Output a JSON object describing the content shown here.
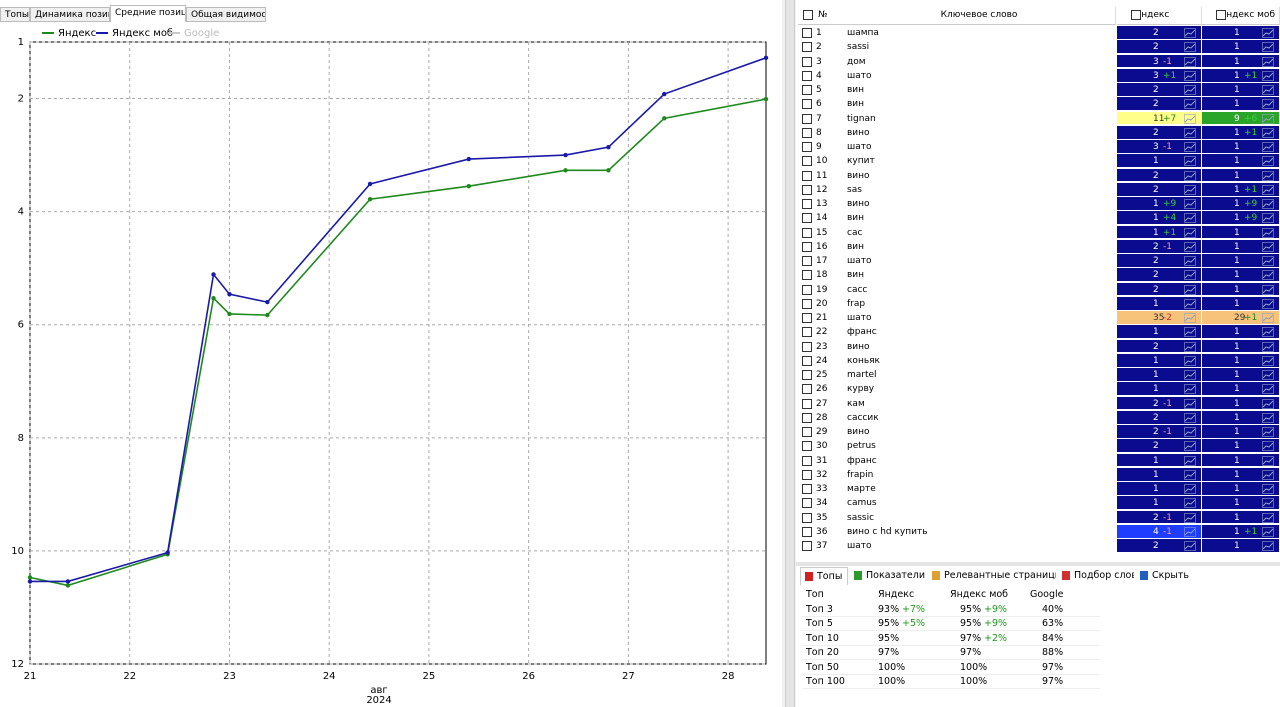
{
  "left_tabs": [
    "Топы",
    "Динамика позиций",
    "Средние позиции",
    "Общая видимость"
  ],
  "left_active_tab": 2,
  "chart_data": {
    "type": "line",
    "x": [
      21,
      21.38,
      22.38,
      22.84,
      23.0,
      23.38,
      24.41,
      25.4,
      26.37,
      26.8,
      27.36,
      28.38
    ],
    "series": [
      {
        "name": "Яндекс",
        "color": "#1e8a1e",
        "values": [
          10.47,
          10.61,
          10.06,
          5.53,
          5.81,
          5.83,
          3.78,
          3.55,
          3.27,
          3.27,
          2.35,
          2.01
        ]
      },
      {
        "name": "Яндекс моб",
        "color": "#1a1aa8",
        "values": [
          10.54,
          10.54,
          10.03,
          5.11,
          5.46,
          5.6,
          3.51,
          3.07,
          3.0,
          2.86,
          1.92,
          1.28
        ]
      },
      {
        "name": "Google",
        "color": "#c8c8c8",
        "values": [
          null,
          null,
          null,
          null,
          null,
          null,
          null,
          null,
          null,
          null,
          null,
          null
        ]
      }
    ],
    "xlim": [
      21,
      28.38
    ],
    "xticks": [
      21,
      22,
      23,
      24,
      25,
      26,
      27,
      28
    ],
    "ylim": [
      1,
      12
    ],
    "yticks": [
      1,
      2,
      4,
      6,
      8,
      10,
      12
    ],
    "y_inverted": true,
    "x_label_month": "авг",
    "x_label_year": "2024",
    "grid": true
  },
  "table": {
    "header": [
      "№",
      "Ключевое слово",
      "Яндекс",
      "Яндекс моб"
    ],
    "cell_color": "#0b0b8f",
    "rows": [
      {
        "n": 1,
        "keyword": "шампа",
        "yandex": 2,
        "mob": 1
      },
      {
        "n": 2,
        "keyword": "sassi",
        "yandex": 2,
        "mob": 1
      },
      {
        "n": 3,
        "keyword": "дом",
        "yandex": 3,
        "yandex_change": "-1",
        "mob": 1
      },
      {
        "n": 4,
        "keyword": "шато",
        "yandex": 3,
        "yandex_change": "+1",
        "mob": 1,
        "mob_change": "+1"
      },
      {
        "n": 5,
        "keyword": "вин",
        "yandex": 2,
        "mob": 1
      },
      {
        "n": 6,
        "keyword": "вин",
        "yandex": 2,
        "mob": 1
      },
      {
        "n": 7,
        "keyword": "tignan",
        "yandex": 11,
        "yandex_change": "+7",
        "mob": 9,
        "mob_change": "+6",
        "yandex_color": "#ffff8a",
        "mob_color": "#2aa52a"
      },
      {
        "n": 8,
        "keyword": "вино",
        "yandex": 2,
        "mob": 1,
        "mob_change": "+1"
      },
      {
        "n": 9,
        "keyword": "шато",
        "yandex": 3,
        "yandex_change": "-1",
        "mob": 1
      },
      {
        "n": 10,
        "keyword": "купит",
        "yandex": 1,
        "mob": 1
      },
      {
        "n": 11,
        "keyword": "вино",
        "yandex": 2,
        "mob": 1
      },
      {
        "n": 12,
        "keyword": "sas",
        "yandex": 2,
        "mob": 1,
        "mob_change": "+1"
      },
      {
        "n": 13,
        "keyword": "вино",
        "yandex": 1,
        "yandex_change": "+9",
        "mob": 1,
        "mob_change": "+9"
      },
      {
        "n": 14,
        "keyword": "вин",
        "yandex": 1,
        "yandex_change": "+4",
        "mob": 1,
        "mob_change": "+9"
      },
      {
        "n": 15,
        "keyword": "сас",
        "yandex": 1,
        "yandex_change": "+1",
        "mob": 1
      },
      {
        "n": 16,
        "keyword": "вин",
        "yandex": 2,
        "yandex_change": "-1",
        "mob": 1
      },
      {
        "n": 17,
        "keyword": "шато",
        "yandex": 2,
        "mob": 1
      },
      {
        "n": 18,
        "keyword": "вин",
        "yandex": 2,
        "mob": 1
      },
      {
        "n": 19,
        "keyword": "сасс",
        "yandex": 2,
        "mob": 1
      },
      {
        "n": 20,
        "keyword": "frap",
        "yandex": 1,
        "mob": 1
      },
      {
        "n": 21,
        "keyword": "шато",
        "yandex": 35,
        "yandex_change": "-2",
        "mob": 29,
        "mob_change": "+1",
        "yandex_color": "#f7c27a",
        "mob_color": "#f7c27a"
      },
      {
        "n": 22,
        "keyword": "франс",
        "yandex": 1,
        "mob": 1
      },
      {
        "n": 23,
        "keyword": "вино",
        "yandex": 2,
        "mob": 1
      },
      {
        "n": 24,
        "keyword": "коньяк",
        "yandex": 1,
        "mob": 1
      },
      {
        "n": 25,
        "keyword": "martel",
        "yandex": 1,
        "mob": 1
      },
      {
        "n": 26,
        "keyword": "курву",
        "yandex": 1,
        "mob": 1
      },
      {
        "n": 27,
        "keyword": "кам",
        "yandex": 2,
        "yandex_change": "-1",
        "mob": 1
      },
      {
        "n": 28,
        "keyword": "сассик",
        "yandex": 2,
        "mob": 1
      },
      {
        "n": 29,
        "keyword": "вино",
        "yandex": 2,
        "yandex_change": "-1",
        "mob": 1
      },
      {
        "n": 30,
        "keyword": "petrus",
        "yandex": 2,
        "mob": 1
      },
      {
        "n": 31,
        "keyword": "франс",
        "yandex": 1,
        "mob": 1
      },
      {
        "n": 32,
        "keyword": "frapin",
        "yandex": 1,
        "mob": 1
      },
      {
        "n": 33,
        "keyword": "марте",
        "yandex": 1,
        "mob": 1
      },
      {
        "n": 34,
        "keyword": "camus",
        "yandex": 1,
        "mob": 1
      },
      {
        "n": 35,
        "keyword": "sassic",
        "yandex": 2,
        "yandex_change": "-1",
        "mob": 1
      },
      {
        "n": 36,
        "keyword": "вино с           hd купить",
        "yandex": 4,
        "yandex_change": "-1",
        "mob": 1,
        "mob_change": "+1",
        "yandex_color": "#1f3dff"
      },
      {
        "n": 37,
        "keyword": "шато",
        "yandex": 2,
        "mob": 1
      }
    ]
  },
  "bottom_tabs": [
    "Топы",
    "Показатели",
    "Релевантные страницы",
    "Подбор слов",
    "Скрыть"
  ],
  "tops": {
    "header": [
      "Топ",
      "Яндекс",
      "Яндекс моб",
      "Google"
    ],
    "rows": [
      {
        "top": "Топ 3",
        "yandex": "93%",
        "yandex_change": "+7%",
        "mob": "95%",
        "mob_change": "+9%",
        "google": "40%"
      },
      {
        "top": "Топ 5",
        "yandex": "95%",
        "yandex_change": "+5%",
        "mob": "95%",
        "mob_change": "+9%",
        "google": "63%"
      },
      {
        "top": "Топ 10",
        "yandex": "95%",
        "mob": "97%",
        "mob_change": "+2%",
        "google": "84%"
      },
      {
        "top": "Топ 20",
        "yandex": "97%",
        "mob": "97%",
        "google": "88%"
      },
      {
        "top": "Топ 50",
        "yandex": "100%",
        "mob": "100%",
        "google": "97%"
      },
      {
        "top": "Топ 100",
        "yandex": "100%",
        "mob": "100%",
        "google": "97%"
      }
    ]
  }
}
